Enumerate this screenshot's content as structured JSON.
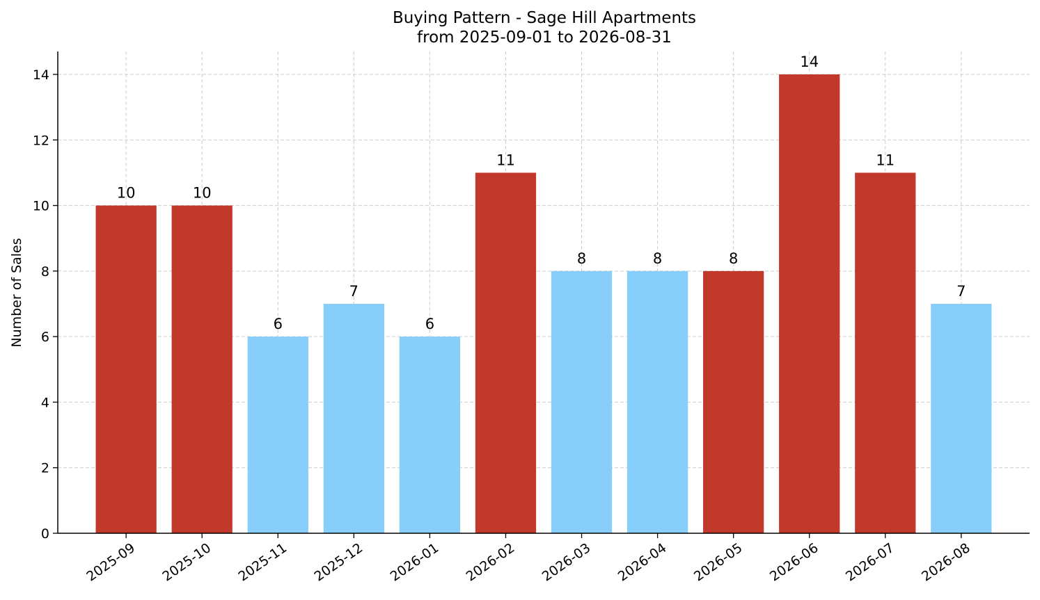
{
  "chart_data": {
    "type": "bar",
    "title": "Buying Pattern - Sage Hill Apartments",
    "subtitle": "from 2025-09-01 to 2026-08-31",
    "xlabel": "",
    "ylabel": "Number of Sales",
    "categories": [
      "2025-09",
      "2025-10",
      "2025-11",
      "2025-12",
      "2026-01",
      "2026-02",
      "2026-03",
      "2026-04",
      "2026-05",
      "2026-06",
      "2026-07",
      "2026-08"
    ],
    "values": [
      10,
      10,
      6,
      7,
      6,
      11,
      8,
      8,
      8,
      14,
      11,
      7
    ],
    "data_labels": [
      "10",
      "10",
      "6",
      "7",
      "6",
      "11",
      "8",
      "8",
      "8",
      "14",
      "11",
      "7"
    ],
    "bar_colors": [
      "#c0392b",
      "#c0392b",
      "#87cefa",
      "#87cefa",
      "#87cefa",
      "#c0392b",
      "#87cefa",
      "#87cefa",
      "#c0392b",
      "#c0392b",
      "#c0392b",
      "#87cefa"
    ],
    "ylim": [
      0,
      14.7
    ],
    "yticks": [
      0,
      2,
      4,
      6,
      8,
      10,
      12,
      14
    ],
    "ytick_labels": [
      "0",
      "2",
      "4",
      "6",
      "8",
      "10",
      "12",
      "14"
    ],
    "grid": true,
    "legend": "none"
  }
}
